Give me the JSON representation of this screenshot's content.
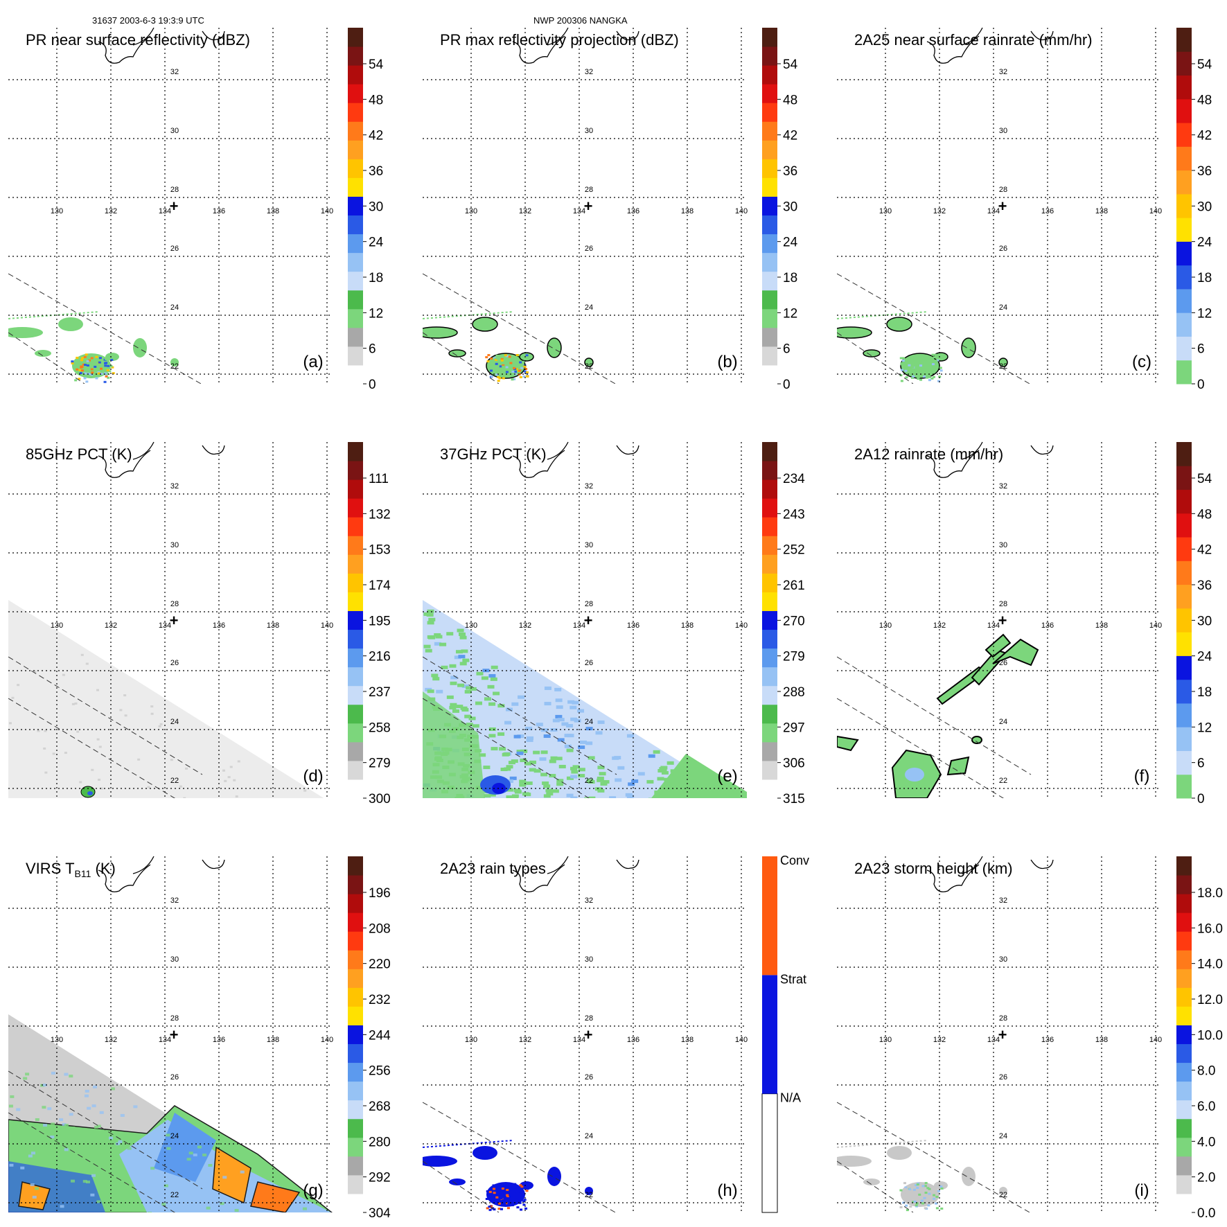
{
  "header": {
    "left": "31637 2003-6-3 19:3:9 UTC",
    "center": "NWP 200306 NANGKA"
  },
  "map": {
    "lon_ticks": [
      "130",
      "132",
      "134",
      "136",
      "138",
      "140"
    ],
    "lat_ticks": [
      "32",
      "30",
      "28",
      "26",
      "24",
      "22"
    ],
    "center_marker": "+"
  },
  "chart_data": [
    {
      "type": "heatmap",
      "id": "a",
      "title": "PR near surface reflectivity (dBZ)",
      "letter": "(a)",
      "colorbar": {
        "ticks": [
          "54",
          "48",
          "42",
          "36",
          "30",
          "24",
          "18",
          "12",
          "6",
          "0"
        ],
        "range": [
          0,
          60
        ]
      },
      "swath": "narrow"
    },
    {
      "type": "heatmap",
      "id": "b",
      "title": "PR max reflectivity projection (dBZ)",
      "letter": "(b)",
      "colorbar": {
        "ticks": [
          "54",
          "48",
          "42",
          "36",
          "30",
          "24",
          "18",
          "12",
          "6",
          "0"
        ],
        "range": [
          0,
          60
        ]
      },
      "swath": "narrow"
    },
    {
      "type": "heatmap",
      "id": "c",
      "title": "2A25 near surface rainrate (mm/hr)",
      "letter": "(c)",
      "colorbar": {
        "ticks": [
          "54",
          "48",
          "42",
          "36",
          "30",
          "24",
          "18",
          "12",
          "6",
          "0"
        ],
        "range": [
          0,
          60
        ]
      },
      "swath": "narrow"
    },
    {
      "type": "heatmap",
      "id": "d",
      "title": "85GHz PCT (K)",
      "letter": "(d)",
      "colorbar": {
        "ticks": [
          "111",
          "132",
          "153",
          "174",
          "195",
          "216",
          "237",
          "258",
          "279",
          "300"
        ],
        "range": [
          90,
          300
        ]
      },
      "swath": "wide"
    },
    {
      "type": "heatmap",
      "id": "e",
      "title": "37GHz PCT (K)",
      "letter": "(e)",
      "colorbar": {
        "ticks": [
          "234",
          "243",
          "252",
          "261",
          "270",
          "279",
          "288",
          "297",
          "306",
          "315"
        ],
        "range": [
          225,
          315
        ]
      },
      "swath": "wide"
    },
    {
      "type": "heatmap",
      "id": "f",
      "title": "2A12 rainrate (mm/hr)",
      "letter": "(f)",
      "colorbar": {
        "ticks": [
          "54",
          "48",
          "42",
          "36",
          "30",
          "24",
          "18",
          "12",
          "6",
          "0"
        ],
        "range": [
          0,
          60
        ]
      },
      "swath": "wide"
    },
    {
      "type": "heatmap",
      "id": "g",
      "title": "VIRS T",
      "title_sub": "B11",
      "title_unit": " (K)",
      "letter": "(g)",
      "colorbar": {
        "ticks": [
          "196",
          "208",
          "220",
          "232",
          "244",
          "256",
          "268",
          "280",
          "292",
          "304"
        ],
        "range": [
          184,
          304
        ]
      },
      "swath": "wide"
    },
    {
      "type": "heatmap",
      "id": "h",
      "title": "2A23 rain types",
      "letter": "(h)",
      "colorbar": {
        "categories": [
          "Conv",
          "Strat",
          "N/A"
        ]
      },
      "swath": "narrow"
    },
    {
      "type": "heatmap",
      "id": "i",
      "title": "2A23 storm height (km)",
      "letter": "(i)",
      "colorbar": {
        "ticks": [
          "18.0",
          "16.0",
          "14.0",
          "12.0",
          "10.0",
          "8.0",
          "6.0",
          "4.0",
          "2.0",
          "0.0"
        ],
        "range": [
          0,
          20
        ]
      },
      "swath": "narrow"
    }
  ],
  "palettes": {
    "standard": [
      "#ffffff",
      "#d8d8d8",
      "#a8a8a8",
      "#7cd67c",
      "#4cba4c",
      "#c8dcf8",
      "#96c2f4",
      "#5c9aee",
      "#2a5ae6",
      "#0a14e0",
      "#ffe100",
      "#ffc400",
      "#ffa020",
      "#ff7a1a",
      "#ff3a10",
      "#e01010",
      "#b00c0c",
      "#7a1414",
      "#4e1e12"
    ],
    "rain": [
      "#7cd67c",
      "#c8dcf8",
      "#96c2f4",
      "#5c9aee",
      "#2a5ae6",
      "#0a14e0",
      "#ffe100",
      "#ffc400",
      "#ffa020",
      "#ff7a1a",
      "#ff3a10",
      "#e01010",
      "#b00c0c",
      "#7a1414",
      "#4e1e12"
    ],
    "rain_types": [
      "#ffffff",
      "#0a14e0",
      "#ff5a10"
    ]
  }
}
